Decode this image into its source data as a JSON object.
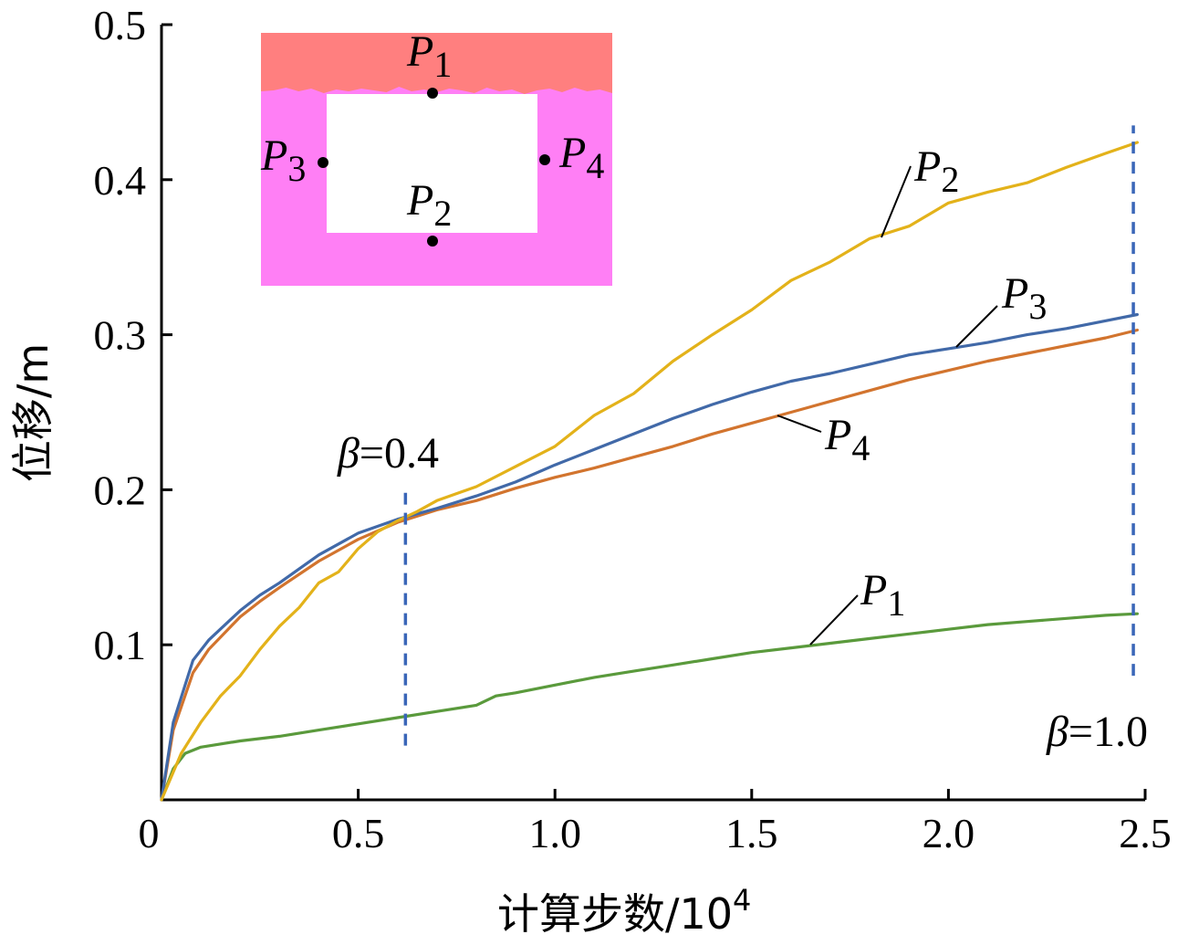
{
  "chart_data": {
    "type": "line",
    "xlabel_main": "计算步数/10",
    "xlabel_exp": "4",
    "ylabel": "位移/m",
    "xlim": [
      0,
      2.5
    ],
    "ylim": [
      0,
      0.5
    ],
    "xticks": [
      0,
      0.5,
      1.0,
      1.5,
      2.0,
      2.5
    ],
    "xtick_labels": [
      "0",
      "0.5",
      "1.0",
      "1.5",
      "2.0",
      "2.5"
    ],
    "yticks": [
      0.1,
      0.2,
      0.3,
      0.4,
      0.5
    ],
    "ytick_labels": [
      "0.1",
      "0.2",
      "0.3",
      "0.4",
      "0.5"
    ],
    "grid": false,
    "series": [
      {
        "name": "P1",
        "label_main": "P",
        "label_sub": "1",
        "color": "#5a9a3c",
        "x": [
          0,
          0.03,
          0.06,
          0.1,
          0.2,
          0.3,
          0.4,
          0.5,
          0.6,
          0.7,
          0.8,
          0.85,
          0.9,
          1.0,
          1.1,
          1.2,
          1.3,
          1.4,
          1.5,
          1.6,
          1.7,
          1.8,
          1.9,
          2.0,
          2.1,
          2.2,
          2.3,
          2.4,
          2.48
        ],
        "y": [
          0,
          0.02,
          0.03,
          0.034,
          0.038,
          0.041,
          0.045,
          0.049,
          0.053,
          0.057,
          0.061,
          0.067,
          0.069,
          0.074,
          0.079,
          0.083,
          0.087,
          0.091,
          0.095,
          0.098,
          0.101,
          0.104,
          0.107,
          0.11,
          0.113,
          0.115,
          0.117,
          0.119,
          0.12
        ]
      },
      {
        "name": "P2",
        "label_main": "P",
        "label_sub": "2",
        "color": "#e3b21a",
        "x": [
          0,
          0.05,
          0.1,
          0.15,
          0.2,
          0.25,
          0.3,
          0.35,
          0.4,
          0.45,
          0.5,
          0.55,
          0.6,
          0.65,
          0.7,
          0.8,
          0.9,
          1.0,
          1.1,
          1.2,
          1.3,
          1.4,
          1.5,
          1.6,
          1.7,
          1.8,
          1.9,
          2.0,
          2.1,
          2.2,
          2.3,
          2.4,
          2.48
        ],
        "y": [
          0,
          0.03,
          0.05,
          0.067,
          0.08,
          0.097,
          0.112,
          0.124,
          0.14,
          0.147,
          0.162,
          0.173,
          0.18,
          0.186,
          0.193,
          0.202,
          0.215,
          0.228,
          0.248,
          0.262,
          0.283,
          0.3,
          0.316,
          0.335,
          0.347,
          0.362,
          0.37,
          0.385,
          0.392,
          0.398,
          0.408,
          0.417,
          0.424
        ]
      },
      {
        "name": "P3",
        "label_main": "P",
        "label_sub": "3",
        "color": "#4169a8",
        "x": [
          0,
          0.03,
          0.08,
          0.12,
          0.2,
          0.25,
          0.3,
          0.4,
          0.5,
          0.6,
          0.7,
          0.8,
          0.9,
          1.0,
          1.1,
          1.2,
          1.3,
          1.4,
          1.5,
          1.6,
          1.7,
          1.8,
          1.9,
          2.0,
          2.1,
          2.2,
          2.3,
          2.4,
          2.48
        ],
        "y": [
          0,
          0.05,
          0.09,
          0.103,
          0.122,
          0.132,
          0.14,
          0.158,
          0.172,
          0.181,
          0.188,
          0.196,
          0.205,
          0.216,
          0.226,
          0.236,
          0.246,
          0.255,
          0.263,
          0.27,
          0.275,
          0.281,
          0.287,
          0.291,
          0.295,
          0.3,
          0.304,
          0.309,
          0.313
        ]
      },
      {
        "name": "P4",
        "label_main": "P",
        "label_sub": "4",
        "color": "#d2742e",
        "x": [
          0,
          0.03,
          0.08,
          0.12,
          0.2,
          0.25,
          0.3,
          0.4,
          0.5,
          0.6,
          0.7,
          0.8,
          0.9,
          1.0,
          1.1,
          1.2,
          1.3,
          1.4,
          1.5,
          1.6,
          1.7,
          1.8,
          1.9,
          2.0,
          2.1,
          2.2,
          2.3,
          2.4,
          2.48
        ],
        "y": [
          0,
          0.045,
          0.082,
          0.097,
          0.118,
          0.128,
          0.137,
          0.154,
          0.168,
          0.179,
          0.187,
          0.193,
          0.201,
          0.208,
          0.214,
          0.221,
          0.228,
          0.236,
          0.243,
          0.25,
          0.257,
          0.264,
          0.271,
          0.277,
          0.283,
          0.288,
          0.293,
          0.298,
          0.303
        ]
      }
    ],
    "annotations": [
      {
        "name": "beta-04",
        "symbol": "β",
        "text": "=0.4",
        "x": 0.62,
        "y_from": 0.035,
        "y_to": 0.198,
        "color": "#3a66b8"
      },
      {
        "name": "beta-10",
        "symbol": "β",
        "text": "=1.0",
        "x": 2.47,
        "y_from": 0.08,
        "y_to": 0.435,
        "color": "#3a66b8"
      }
    ],
    "inset": {
      "rock_color": "#ff7f7f",
      "lining_color": "#ff7ff5",
      "points": [
        {
          "name": "P1",
          "label_main": "P",
          "label_sub": "1"
        },
        {
          "name": "P2",
          "label_main": "P",
          "label_sub": "2"
        },
        {
          "name": "P3",
          "label_main": "P",
          "label_sub": "3"
        },
        {
          "name": "P4",
          "label_main": "P",
          "label_sub": "4"
        }
      ]
    }
  }
}
